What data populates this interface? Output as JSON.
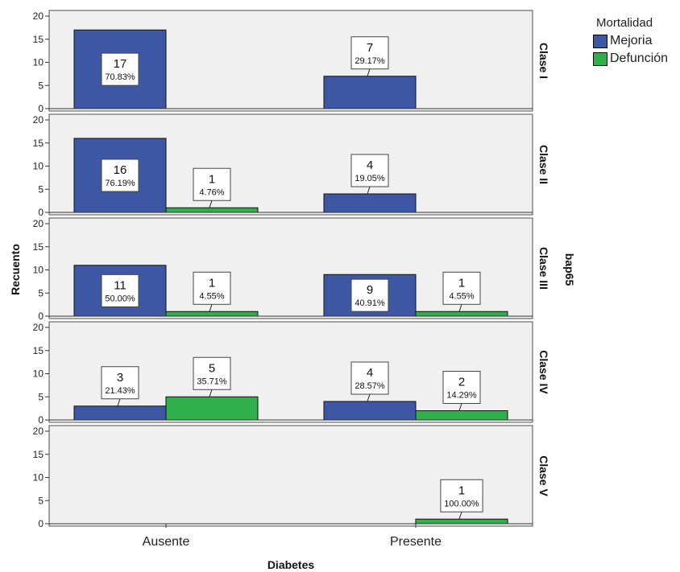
{
  "chart_data": {
    "type": "bar",
    "ylabel": "Recuento",
    "xlabel": "Diabetes",
    "row_variable": "bap65",
    "categories": [
      "Ausente",
      "Presente"
    ],
    "ylim": [
      0,
      20
    ],
    "yticks": [
      0,
      5,
      10,
      15,
      20
    ],
    "legend": {
      "title": "Mortalidad",
      "placement": "top-right",
      "items": [
        {
          "name": "Mejoria",
          "color": "#3e57a5"
        },
        {
          "name": "Defunción",
          "color": "#2fb04a"
        }
      ]
    },
    "panels": [
      {
        "label": "Clase I",
        "series": [
          {
            "name": "Mejoria",
            "values": [
              17,
              7
            ],
            "labels": [
              [
                "17",
                "70.83%"
              ],
              [
                "7",
                "29.17%"
              ]
            ]
          },
          {
            "name": "Defunción",
            "values": [
              0,
              0
            ],
            "labels": [
              null,
              null
            ]
          }
        ]
      },
      {
        "label": "Clase II",
        "series": [
          {
            "name": "Mejoria",
            "values": [
              16,
              4
            ],
            "labels": [
              [
                "16",
                "76.19%"
              ],
              [
                "4",
                "19.05%"
              ]
            ]
          },
          {
            "name": "Defunción",
            "values": [
              1,
              0
            ],
            "labels": [
              [
                "1",
                "4.76%"
              ],
              null
            ]
          }
        ]
      },
      {
        "label": "Clase III",
        "series": [
          {
            "name": "Mejoria",
            "values": [
              11,
              9
            ],
            "labels": [
              [
                "11",
                "50.00%"
              ],
              [
                "9",
                "40.91%"
              ]
            ]
          },
          {
            "name": "Defunción",
            "values": [
              1,
              1
            ],
            "labels": [
              [
                "1",
                "4.55%"
              ],
              [
                "1",
                "4.55%"
              ]
            ]
          }
        ]
      },
      {
        "label": "Clase IV",
        "series": [
          {
            "name": "Mejoria",
            "values": [
              3,
              4
            ],
            "labels": [
              [
                "3",
                "21.43%"
              ],
              [
                "4",
                "28.57%"
              ]
            ]
          },
          {
            "name": "Defunción",
            "values": [
              5,
              2
            ],
            "labels": [
              [
                "5",
                "35.71%"
              ],
              [
                "2",
                "14.29%"
              ]
            ]
          }
        ]
      },
      {
        "label": "Clase V",
        "series": [
          {
            "name": "Mejoria",
            "values": [
              0,
              0
            ],
            "labels": [
              null,
              null
            ]
          },
          {
            "name": "Defunción",
            "values": [
              0,
              1
            ],
            "labels": [
              null,
              [
                "1",
                "100.00%"
              ]
            ]
          }
        ]
      }
    ]
  }
}
